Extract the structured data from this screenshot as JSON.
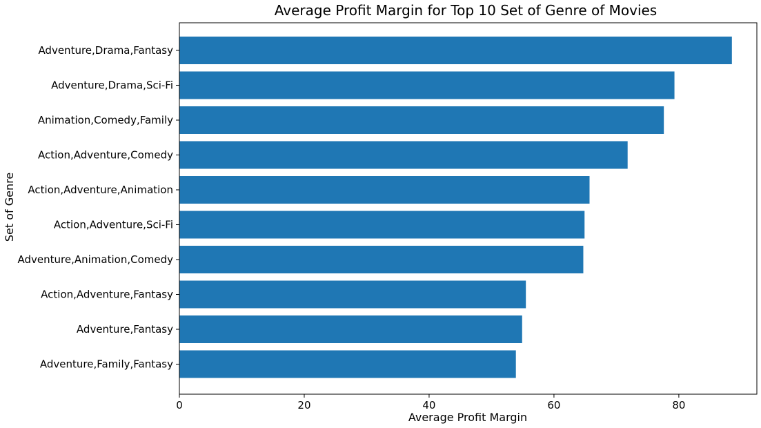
{
  "chart_data": {
    "type": "bar",
    "orientation": "horizontal",
    "title": "Average Profit Margin for Top 10 Set of Genre of Movies",
    "xlabel": "Average Profit Margin",
    "ylabel": "Set of Genre",
    "xlim": [
      0,
      92.5
    ],
    "xticks": [
      0,
      20,
      40,
      60,
      80
    ],
    "grid": false,
    "bar_color": "#1f77b4",
    "categories": [
      "Adventure,Drama,Fantasy",
      "Adventure,Drama,Sci-Fi",
      "Animation,Comedy,Family",
      "Action,Adventure,Comedy",
      "Action,Adventure,Animation",
      "Action,Adventure,Sci-Fi",
      "Adventure,Animation,Comedy",
      "Action,Adventure,Fantasy",
      "Adventure,Fantasy",
      "Adventure,Family,Fantasy"
    ],
    "values": [
      88.5,
      79.3,
      77.6,
      71.8,
      65.7,
      64.9,
      64.7,
      55.5,
      54.9,
      53.9
    ]
  }
}
